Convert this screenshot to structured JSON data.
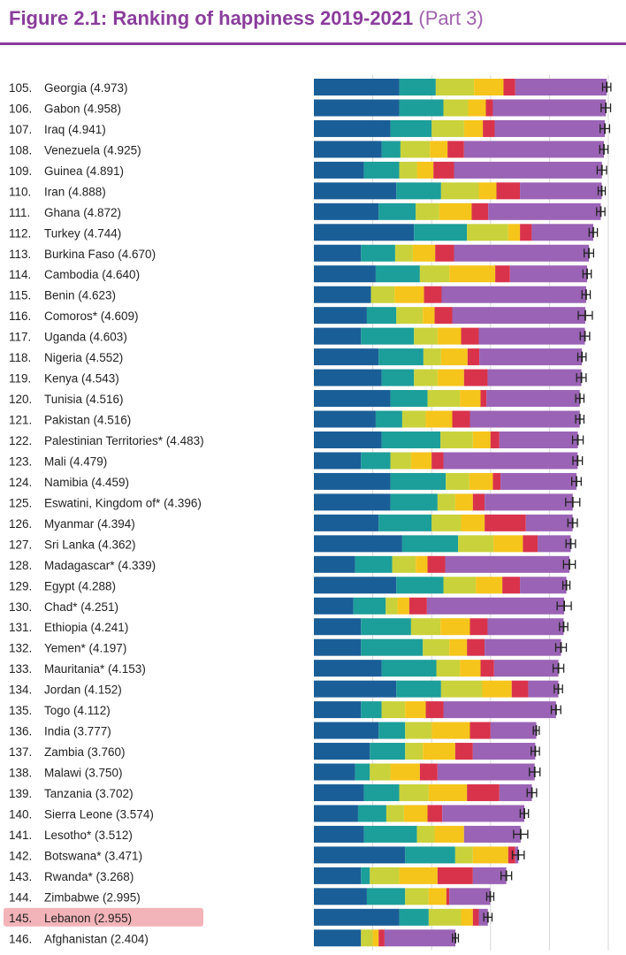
{
  "title": {
    "main": "Figure 2.1: Ranking of happiness 2019-2021",
    "part": "(Part 3)"
  },
  "chart_data": {
    "type": "bar",
    "stacked": true,
    "title": "Figure 2.1: Ranking of happiness 2019-2021 (Part 3)",
    "orientation": "horizontal",
    "highlight": "Lebanon",
    "highlight_color": "#f2b4b8",
    "component_colors": [
      "#1a5e97",
      "#1c9e9a",
      "#c9d23a",
      "#f6c51b",
      "#d9334b",
      "#9a63b5"
    ],
    "xlim": [
      0,
      5
    ],
    "grid": true,
    "ranks": [
      105,
      106,
      107,
      108,
      109,
      110,
      111,
      112,
      113,
      114,
      115,
      116,
      117,
      118,
      119,
      120,
      121,
      122,
      123,
      124,
      125,
      126,
      127,
      128,
      129,
      130,
      131,
      132,
      133,
      134,
      135,
      136,
      137,
      138,
      139,
      140,
      141,
      142,
      143,
      144,
      145,
      146
    ],
    "categories": [
      "Georgia",
      "Gabon",
      "Iraq",
      "Venezuela",
      "Guinea",
      "Iran",
      "Ghana",
      "Turkey",
      "Burkina Faso",
      "Cambodia",
      "Benin",
      "Comoros*",
      "Uganda",
      "Nigeria",
      "Kenya",
      "Tunisia",
      "Pakistan",
      "Palestinian Territories*",
      "Mali",
      "Namibia",
      "Eswatini, Kingdom of*",
      "Myanmar",
      "Sri Lanka",
      "Madagascar*",
      "Egypt",
      "Chad*",
      "Ethiopia",
      "Yemen*",
      "Mauritania*",
      "Jordan",
      "Togo",
      "India",
      "Zambia",
      "Malawi",
      "Tanzania",
      "Sierra Leone",
      "Lesotho*",
      "Botswana*",
      "Rwanda*",
      "Zimbabwe",
      "Lebanon",
      "Afghanistan"
    ],
    "values": [
      4.973,
      4.958,
      4.941,
      4.925,
      4.891,
      4.888,
      4.872,
      4.744,
      4.67,
      4.64,
      4.623,
      4.609,
      4.603,
      4.552,
      4.543,
      4.516,
      4.516,
      4.483,
      4.479,
      4.459,
      4.396,
      4.394,
      4.362,
      4.339,
      4.288,
      4.251,
      4.241,
      4.197,
      4.153,
      4.152,
      4.112,
      3.777,
      3.76,
      3.75,
      3.702,
      3.574,
      3.512,
      3.471,
      3.268,
      2.995,
      2.955,
      2.404
    ],
    "components": [
      [
        1.45,
        0.62,
        0.65,
        0.5,
        0.2,
        1.553
      ],
      [
        1.45,
        0.75,
        0.42,
        0.3,
        0.12,
        1.918
      ],
      [
        1.3,
        0.7,
        0.55,
        0.32,
        0.2,
        1.871
      ],
      [
        1.15,
        0.32,
        0.5,
        0.3,
        0.28,
        2.375
      ],
      [
        0.85,
        0.6,
        0.3,
        0.28,
        0.35,
        2.511
      ],
      [
        1.4,
        0.76,
        0.64,
        0.3,
        0.4,
        1.388
      ],
      [
        1.1,
        0.63,
        0.4,
        0.55,
        0.28,
        1.912
      ],
      [
        1.7,
        0.9,
        0.7,
        0.2,
        0.2,
        1.044
      ],
      [
        0.8,
        0.58,
        0.3,
        0.38,
        0.32,
        2.29
      ],
      [
        1.05,
        0.75,
        0.5,
        0.78,
        0.25,
        1.31
      ],
      [
        0.97,
        0.0,
        0.4,
        0.5,
        0.3,
        2.453
      ],
      [
        0.9,
        0.5,
        0.45,
        0.2,
        0.3,
        2.259
      ],
      [
        0.8,
        0.9,
        0.4,
        0.4,
        0.3,
        1.803
      ],
      [
        1.1,
        0.76,
        0.3,
        0.45,
        0.2,
        1.742
      ],
      [
        1.15,
        0.55,
        0.4,
        0.45,
        0.4,
        1.593
      ],
      [
        1.3,
        0.63,
        0.55,
        0.35,
        0.1,
        1.586
      ],
      [
        1.05,
        0.45,
        0.4,
        0.45,
        0.3,
        1.866
      ],
      [
        1.15,
        1.0,
        0.55,
        0.3,
        0.15,
        1.333
      ],
      [
        0.8,
        0.5,
        0.35,
        0.35,
        0.2,
        2.279
      ],
      [
        1.3,
        0.94,
        0.4,
        0.4,
        0.13,
        1.289
      ],
      [
        1.3,
        0.8,
        0.3,
        0.3,
        0.2,
        1.496
      ],
      [
        1.1,
        0.9,
        0.5,
        0.4,
        0.7,
        0.794
      ],
      [
        1.5,
        0.95,
        0.6,
        0.5,
        0.25,
        0.562
      ],
      [
        0.7,
        0.63,
        0.4,
        0.2,
        0.3,
        2.109
      ],
      [
        1.4,
        0.8,
        0.55,
        0.45,
        0.3,
        0.788
      ],
      [
        0.67,
        0.55,
        0.2,
        0.2,
        0.3,
        2.331
      ],
      [
        0.8,
        0.85,
        0.5,
        0.5,
        0.3,
        1.291
      ],
      [
        0.8,
        1.05,
        0.45,
        0.3,
        0.3,
        1.297
      ],
      [
        1.15,
        0.93,
        0.4,
        0.35,
        0.23,
        1.093
      ],
      [
        1.4,
        0.76,
        0.7,
        0.5,
        0.28,
        0.512
      ],
      [
        0.8,
        0.35,
        0.4,
        0.35,
        0.3,
        1.912
      ],
      [
        1.1,
        0.45,
        0.45,
        0.65,
        0.35,
        0.777
      ],
      [
        0.95,
        0.6,
        0.3,
        0.55,
        0.3,
        1.06
      ],
      [
        0.7,
        0.25,
        0.35,
        0.5,
        0.3,
        1.65
      ],
      [
        0.85,
        0.6,
        0.5,
        0.65,
        0.55,
        0.552
      ],
      [
        0.75,
        0.48,
        0.3,
        0.4,
        0.25,
        1.394
      ],
      [
        0.85,
        0.9,
        0.3,
        0.5,
        0.0,
        0.962
      ],
      [
        1.55,
        0.85,
        0.3,
        0.6,
        0.12,
        0.051
      ],
      [
        0.8,
        0.15,
        0.5,
        0.65,
        0.6,
        0.568
      ],
      [
        0.9,
        0.65,
        0.4,
        0.3,
        0.05,
        0.695
      ],
      [
        1.45,
        0.5,
        0.55,
        0.2,
        0.1,
        0.155
      ],
      [
        0.8,
        0.0,
        0.2,
        0.1,
        0.1,
        1.204
      ]
    ],
    "ci_half_width": [
      0.07,
      0.08,
      0.08,
      0.07,
      0.08,
      0.06,
      0.07,
      0.07,
      0.08,
      0.07,
      0.07,
      0.12,
      0.08,
      0.07,
      0.08,
      0.07,
      0.07,
      0.09,
      0.08,
      0.08,
      0.12,
      0.08,
      0.08,
      0.1,
      0.06,
      0.12,
      0.07,
      0.09,
      0.09,
      0.07,
      0.08,
      0.05,
      0.07,
      0.09,
      0.08,
      0.07,
      0.12,
      0.1,
      0.09,
      0.06,
      0.07,
      0.05
    ]
  }
}
